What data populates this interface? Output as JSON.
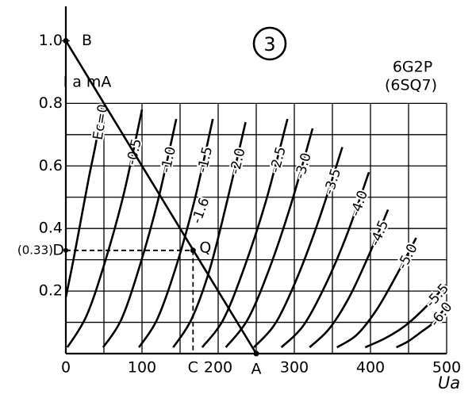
{
  "chart_data": {
    "type": "line",
    "title": "6G2P",
    "subtitle": "(6SQ7)",
    "figure_number": "3",
    "y_label": "I a mA",
    "x_label": "Ua",
    "xlim": [
      0,
      500
    ],
    "ylim": [
      0,
      1.1
    ],
    "xticks": [
      0,
      100,
      200,
      300,
      400,
      500
    ],
    "yticks": [
      0.2,
      0.4,
      0.6,
      0.8,
      {
        "value": 1.0,
        "label": "1.0"
      }
    ],
    "minor_xticks": [
      50,
      150,
      250,
      350,
      450
    ],
    "minor_yticks": [
      0.1,
      0.3,
      0.5,
      0.7
    ],
    "grid": true,
    "color": "#000000",
    "series": [
      {
        "name": "Ec=0",
        "x": [
          0,
          10,
          20,
          30,
          40,
          48
        ],
        "values": [
          0.18,
          0.3,
          0.43,
          0.56,
          0.68,
          0.8
        ]
      },
      {
        "name": "-0.5",
        "x": [
          2,
          27,
          51,
          76,
          100
        ],
        "values": [
          0.02,
          0.12,
          0.29,
          0.51,
          0.78
        ]
      },
      {
        "name": "-1.0",
        "x": [
          49,
          73,
          97,
          121,
          145
        ],
        "values": [
          0.02,
          0.11,
          0.28,
          0.49,
          0.75
        ]
      },
      {
        "name": "-1.5",
        "x": [
          96,
          120,
          145,
          169,
          193
        ],
        "values": [
          0.02,
          0.11,
          0.28,
          0.49,
          0.75
        ]
      },
      {
        "name": "-2.0",
        "x": [
          141,
          165,
          189,
          212,
          236
        ],
        "values": [
          0.02,
          0.11,
          0.27,
          0.49,
          0.74
        ]
      },
      {
        "name": "-2.5",
        "x": [
          179,
          207,
          235,
          263,
          291
        ],
        "values": [
          0.02,
          0.11,
          0.28,
          0.49,
          0.75
        ]
      },
      {
        "name": "-3.0",
        "x": [
          210,
          239,
          267,
          296,
          324
        ],
        "values": [
          0.02,
          0.11,
          0.27,
          0.48,
          0.72
        ]
      },
      {
        "name": "-3.5",
        "x": [
          247,
          276,
          305,
          334,
          363
        ],
        "values": [
          0.02,
          0.1,
          0.25,
          0.44,
          0.66
        ]
      },
      {
        "name": "-4.0",
        "x": [
          283,
          312,
          341,
          369,
          398
        ],
        "values": [
          0.02,
          0.09,
          0.22,
          0.38,
          0.58
        ]
      },
      {
        "name": "-4.5",
        "x": [
          320,
          346,
          372,
          397,
          423
        ],
        "values": [
          0.02,
          0.08,
          0.18,
          0.31,
          0.46
        ]
      },
      {
        "name": "-5.0",
        "x": [
          356,
          382,
          408,
          434,
          460
        ],
        "values": [
          0.02,
          0.06,
          0.14,
          0.25,
          0.37
        ]
      },
      {
        "name": "-5.5",
        "x": [
          393,
          420,
          446,
          473,
          499
        ],
        "values": [
          0.02,
          0.05,
          0.09,
          0.15,
          0.22
        ]
      },
      {
        "name": "-6.0",
        "x": [
          434,
          450,
          467,
          483,
          499
        ],
        "values": [
          0.02,
          0.04,
          0.07,
          0.1,
          0.15
        ]
      }
    ],
    "load_line": {
      "x": [
        0,
        250
      ],
      "values": [
        1.0,
        0
      ]
    },
    "points": [
      {
        "label": "B",
        "x": 0,
        "y": 1.0
      },
      {
        "label": "A",
        "x": 250,
        "y": 0
      },
      {
        "label": "Q",
        "x": 167,
        "y": 0.33
      }
    ],
    "c_label": "C",
    "d_label": "D",
    "q_value_label": "(0.33)",
    "q_grid_label": "-1.6"
  }
}
